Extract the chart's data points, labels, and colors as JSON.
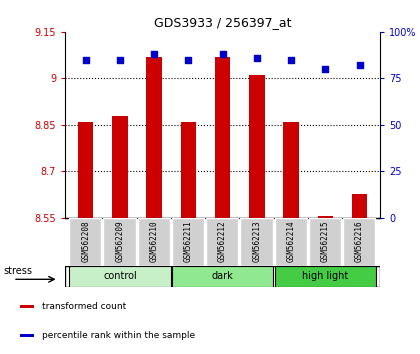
{
  "title": "GDS3933 / 256397_at",
  "samples": [
    "GSM562208",
    "GSM562209",
    "GSM562210",
    "GSM562211",
    "GSM562212",
    "GSM562213",
    "GSM562214",
    "GSM562215",
    "GSM562216"
  ],
  "bar_values": [
    8.858,
    8.878,
    9.07,
    8.858,
    9.07,
    9.01,
    8.858,
    8.556,
    8.625
  ],
  "percentile_values": [
    85,
    85,
    88,
    85,
    88,
    86,
    85,
    80,
    82
  ],
  "bar_bottom": 8.55,
  "ylim_left": [
    8.55,
    9.15
  ],
  "ylim_right": [
    0,
    100
  ],
  "yticks_left": [
    8.55,
    8.7,
    8.85,
    9.0,
    9.15
  ],
  "yticks_right": [
    0,
    25,
    50,
    75,
    100
  ],
  "ytick_labels_left": [
    "8.55",
    "8.7",
    "8.85",
    "9",
    "9.15"
  ],
  "ytick_labels_right": [
    "0",
    "25",
    "50",
    "75",
    "100%"
  ],
  "hlines": [
    9.0,
    8.85,
    8.7
  ],
  "groups": [
    {
      "label": "control",
      "indices": [
        0,
        1,
        2
      ],
      "color": "#c8f0c8"
    },
    {
      "label": "dark",
      "indices": [
        3,
        4,
        5
      ],
      "color": "#90e890"
    },
    {
      "label": "high light",
      "indices": [
        6,
        7,
        8
      ],
      "color": "#44cc44"
    }
  ],
  "bar_color": "#cc0000",
  "dot_color": "#0000cc",
  "bar_width": 0.45,
  "stress_label": "stress",
  "legend_items": [
    {
      "color": "#cc0000",
      "label": "transformed count"
    },
    {
      "color": "#0000cc",
      "label": "percentile rank within the sample"
    }
  ],
  "tick_color_left": "#cc0000",
  "tick_color_right": "#0000cc"
}
